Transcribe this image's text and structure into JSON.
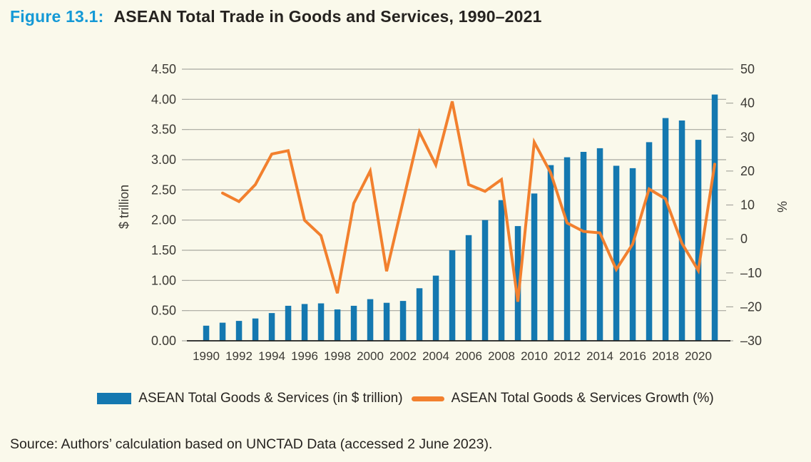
{
  "figure": {
    "label": "Figure 13.1:",
    "title": "ASEAN Total Trade in Goods and Services, 1990–2021"
  },
  "source": "Source: Authors’ calculation based on UNCTAD Data (accessed 2 June 2023).",
  "colors": {
    "background": "#FAF9EB",
    "title_accent": "#1499D6",
    "title_text": "#262320",
    "bar": "#1478B0",
    "line": "#F2802E",
    "axis_text": "#3B3934",
    "grid": "#A7A79F",
    "axis_line": "#1F1F1F"
  },
  "legend": {
    "items": [
      {
        "label": "ASEAN Total Goods & Services (in $ trillion)",
        "swatch": "bar-swatch-icon"
      },
      {
        "label": "ASEAN Total Goods & Services Growth (%)",
        "swatch": "line-swatch-icon"
      }
    ]
  },
  "chart_data": {
    "type": "bar",
    "subtype": "bar+line dual axis",
    "categories": [
      1990,
      1991,
      1992,
      1993,
      1994,
      1995,
      1996,
      1997,
      1998,
      1999,
      2000,
      2001,
      2002,
      2003,
      2004,
      2005,
      2006,
      2007,
      2008,
      2009,
      2010,
      2011,
      2012,
      2013,
      2014,
      2015,
      2016,
      2017,
      2018,
      2019,
      2020,
      2021
    ],
    "x_tick_labels": [
      "1990",
      "1992",
      "1994",
      "1996",
      "1998",
      "2000",
      "2002",
      "2004",
      "2006",
      "2008",
      "2010",
      "2012",
      "2014",
      "2016",
      "2018",
      "2020"
    ],
    "series": [
      {
        "name": "ASEAN Total Goods & Services (in $ trillion)",
        "type": "bar",
        "axis": "left",
        "values": [
          0.25,
          0.3,
          0.33,
          0.37,
          0.46,
          0.58,
          0.61,
          0.62,
          0.52,
          0.58,
          0.69,
          0.63,
          0.66,
          0.87,
          1.08,
          1.5,
          1.75,
          2.0,
          2.33,
          1.9,
          2.44,
          2.91,
          3.04,
          3.13,
          3.19,
          2.9,
          2.86,
          3.29,
          3.69,
          3.65,
          3.33,
          4.08
        ]
      },
      {
        "name": "ASEAN Total Goods & Services Growth (%)",
        "type": "line",
        "axis": "right",
        "values": [
          null,
          13.5,
          11,
          16,
          25,
          26,
          5.5,
          1,
          -16,
          10.5,
          20,
          -9.5,
          11,
          31.5,
          21.8,
          40.5,
          16,
          14,
          17.5,
          -18.5,
          28.5,
          19.5,
          4.7,
          2.2,
          1.8,
          -9,
          -1.5,
          14.7,
          11.8,
          -1.3,
          -9.3,
          22
        ]
      }
    ],
    "left_axis": {
      "label": "$ trillion",
      "min": 0,
      "max": 4.5,
      "tick_step": 0.5,
      "tick_labels": [
        "0.00",
        "0.50",
        "1.00",
        "1.50",
        "2.00",
        "2.50",
        "3.00",
        "3.50",
        "4.00",
        "4.50"
      ]
    },
    "right_axis": {
      "label": "%",
      "min": -30,
      "max": 50,
      "tick_step": 10,
      "tick_labels": [
        "–30",
        "–20",
        "–10",
        "0",
        "10",
        "20",
        "30",
        "40",
        "50"
      ]
    },
    "grid": "horizontal",
    "legend_position": "bottom"
  }
}
